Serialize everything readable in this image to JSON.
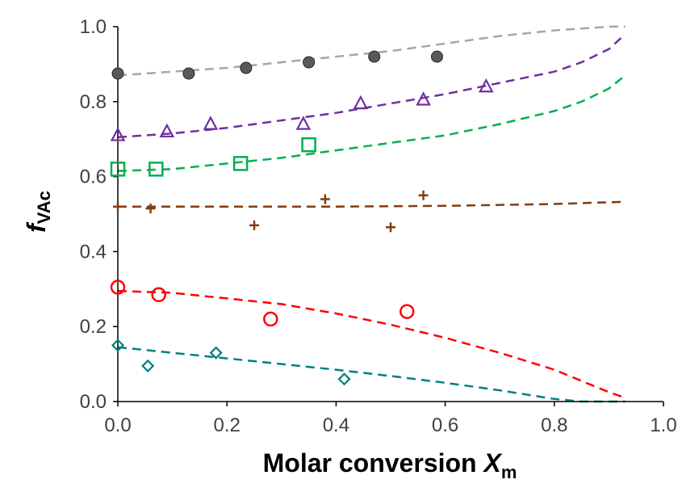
{
  "chart_data": {
    "type": "scatter",
    "xlabel_main": "Molar conversion ",
    "xlabel_var": "X",
    "xlabel_sub": "m",
    "ylabel_var": "f",
    "ylabel_sub": "VAc",
    "xlim": [
      0,
      1
    ],
    "ylim": [
      0,
      1
    ],
    "xticks": [
      "0.0",
      "0.2",
      "0.4",
      "0.6",
      "0.8",
      "1.0"
    ],
    "yticks": [
      "0.0",
      "0.2",
      "0.4",
      "0.6",
      "0.8",
      "1.0"
    ],
    "grid": false,
    "series": [
      {
        "marker": "circle-filled",
        "color": "#595959",
        "line_color": "#a6a6a6",
        "points": [
          [
            0.0,
            0.875
          ],
          [
            0.13,
            0.875
          ],
          [
            0.235,
            0.89
          ],
          [
            0.35,
            0.905
          ],
          [
            0.47,
            0.92
          ],
          [
            0.585,
            0.92
          ]
        ],
        "fit": [
          [
            0.0,
            0.87
          ],
          [
            0.1,
            0.88
          ],
          [
            0.2,
            0.89
          ],
          [
            0.3,
            0.905
          ],
          [
            0.4,
            0.92
          ],
          [
            0.5,
            0.935
          ],
          [
            0.6,
            0.955
          ],
          [
            0.7,
            0.975
          ],
          [
            0.8,
            0.99
          ],
          [
            0.9,
            1.0
          ],
          [
            0.93,
            1.0
          ]
        ]
      },
      {
        "marker": "triangle",
        "color": "#7030a0",
        "line_color": "#7030a0",
        "points": [
          [
            0.0,
            0.71
          ],
          [
            0.09,
            0.72
          ],
          [
            0.17,
            0.74
          ],
          [
            0.34,
            0.74
          ],
          [
            0.445,
            0.795
          ],
          [
            0.56,
            0.805
          ],
          [
            0.675,
            0.84
          ]
        ],
        "fit": [
          [
            0.0,
            0.705
          ],
          [
            0.1,
            0.715
          ],
          [
            0.2,
            0.73
          ],
          [
            0.3,
            0.75
          ],
          [
            0.4,
            0.77
          ],
          [
            0.5,
            0.795
          ],
          [
            0.6,
            0.82
          ],
          [
            0.7,
            0.85
          ],
          [
            0.8,
            0.88
          ],
          [
            0.85,
            0.905
          ],
          [
            0.9,
            0.94
          ],
          [
            0.93,
            0.98
          ]
        ]
      },
      {
        "marker": "square",
        "color": "#00b050",
        "line_color": "#00b050",
        "points": [
          [
            0.0,
            0.62
          ],
          [
            0.07,
            0.62
          ],
          [
            0.225,
            0.635
          ],
          [
            0.35,
            0.685
          ]
        ],
        "fit": [
          [
            0.0,
            0.615
          ],
          [
            0.1,
            0.62
          ],
          [
            0.2,
            0.635
          ],
          [
            0.3,
            0.65
          ],
          [
            0.4,
            0.67
          ],
          [
            0.5,
            0.69
          ],
          [
            0.6,
            0.71
          ],
          [
            0.7,
            0.74
          ],
          [
            0.8,
            0.775
          ],
          [
            0.85,
            0.8
          ],
          [
            0.9,
            0.835
          ],
          [
            0.93,
            0.87
          ]
        ]
      },
      {
        "marker": "plus",
        "color": "#843c0c",
        "line_color": "#843c0c",
        "points": [
          [
            0.0,
            0.52
          ],
          [
            0.06,
            0.515
          ],
          [
            0.25,
            0.47
          ],
          [
            0.38,
            0.54
          ],
          [
            0.5,
            0.465
          ],
          [
            0.56,
            0.55
          ]
        ],
        "fit": [
          [
            0.0,
            0.52
          ],
          [
            0.2,
            0.52
          ],
          [
            0.4,
            0.52
          ],
          [
            0.6,
            0.522
          ],
          [
            0.8,
            0.527
          ],
          [
            0.93,
            0.533
          ]
        ]
      },
      {
        "marker": "circle-open",
        "color": "#ff0000",
        "line_color": "#ff0000",
        "points": [
          [
            0.0,
            0.305
          ],
          [
            0.075,
            0.285
          ],
          [
            0.28,
            0.22
          ],
          [
            0.53,
            0.24
          ]
        ],
        "fit": [
          [
            0.0,
            0.295
          ],
          [
            0.1,
            0.29
          ],
          [
            0.2,
            0.275
          ],
          [
            0.3,
            0.26
          ],
          [
            0.4,
            0.235
          ],
          [
            0.5,
            0.205
          ],
          [
            0.6,
            0.17
          ],
          [
            0.7,
            0.13
          ],
          [
            0.8,
            0.085
          ],
          [
            0.85,
            0.055
          ],
          [
            0.9,
            0.025
          ],
          [
            0.93,
            0.01
          ]
        ]
      },
      {
        "marker": "diamond",
        "color": "#008080",
        "line_color": "#008080",
        "points": [
          [
            0.0,
            0.15
          ],
          [
            0.055,
            0.095
          ],
          [
            0.18,
            0.13
          ],
          [
            0.415,
            0.06
          ]
        ],
        "fit": [
          [
            0.0,
            0.145
          ],
          [
            0.1,
            0.13
          ],
          [
            0.2,
            0.115
          ],
          [
            0.3,
            0.1
          ],
          [
            0.4,
            0.085
          ],
          [
            0.5,
            0.068
          ],
          [
            0.6,
            0.05
          ],
          [
            0.7,
            0.03
          ],
          [
            0.8,
            0.007
          ],
          [
            0.85,
            0.0
          ],
          [
            0.93,
            0.0
          ]
        ]
      }
    ]
  }
}
